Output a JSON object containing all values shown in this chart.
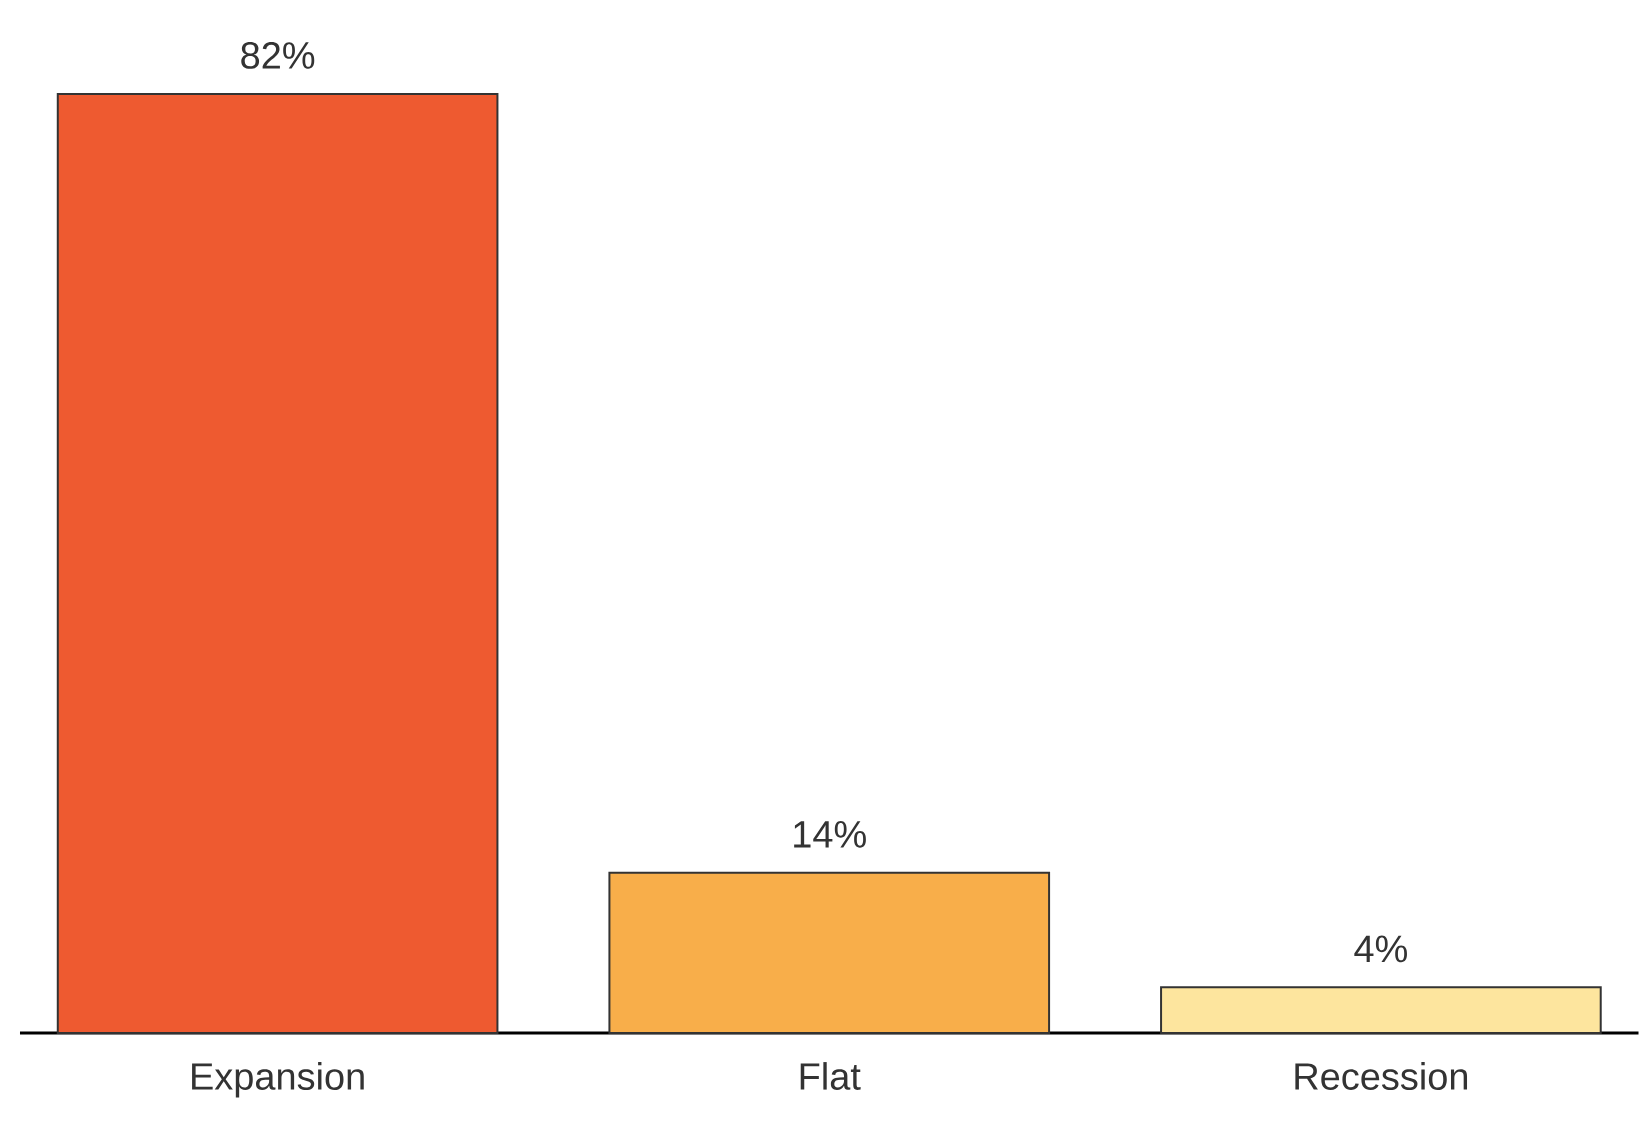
{
  "chart_data": {
    "type": "bar",
    "categories": [
      "Expansion",
      "Flat",
      "Recession"
    ],
    "values": [
      82,
      14,
      4
    ],
    "value_labels": [
      "82%",
      "14%",
      "4%"
    ],
    "colors": [
      "#ee5a30",
      "#f8ae4a",
      "#fde59e"
    ]
  }
}
